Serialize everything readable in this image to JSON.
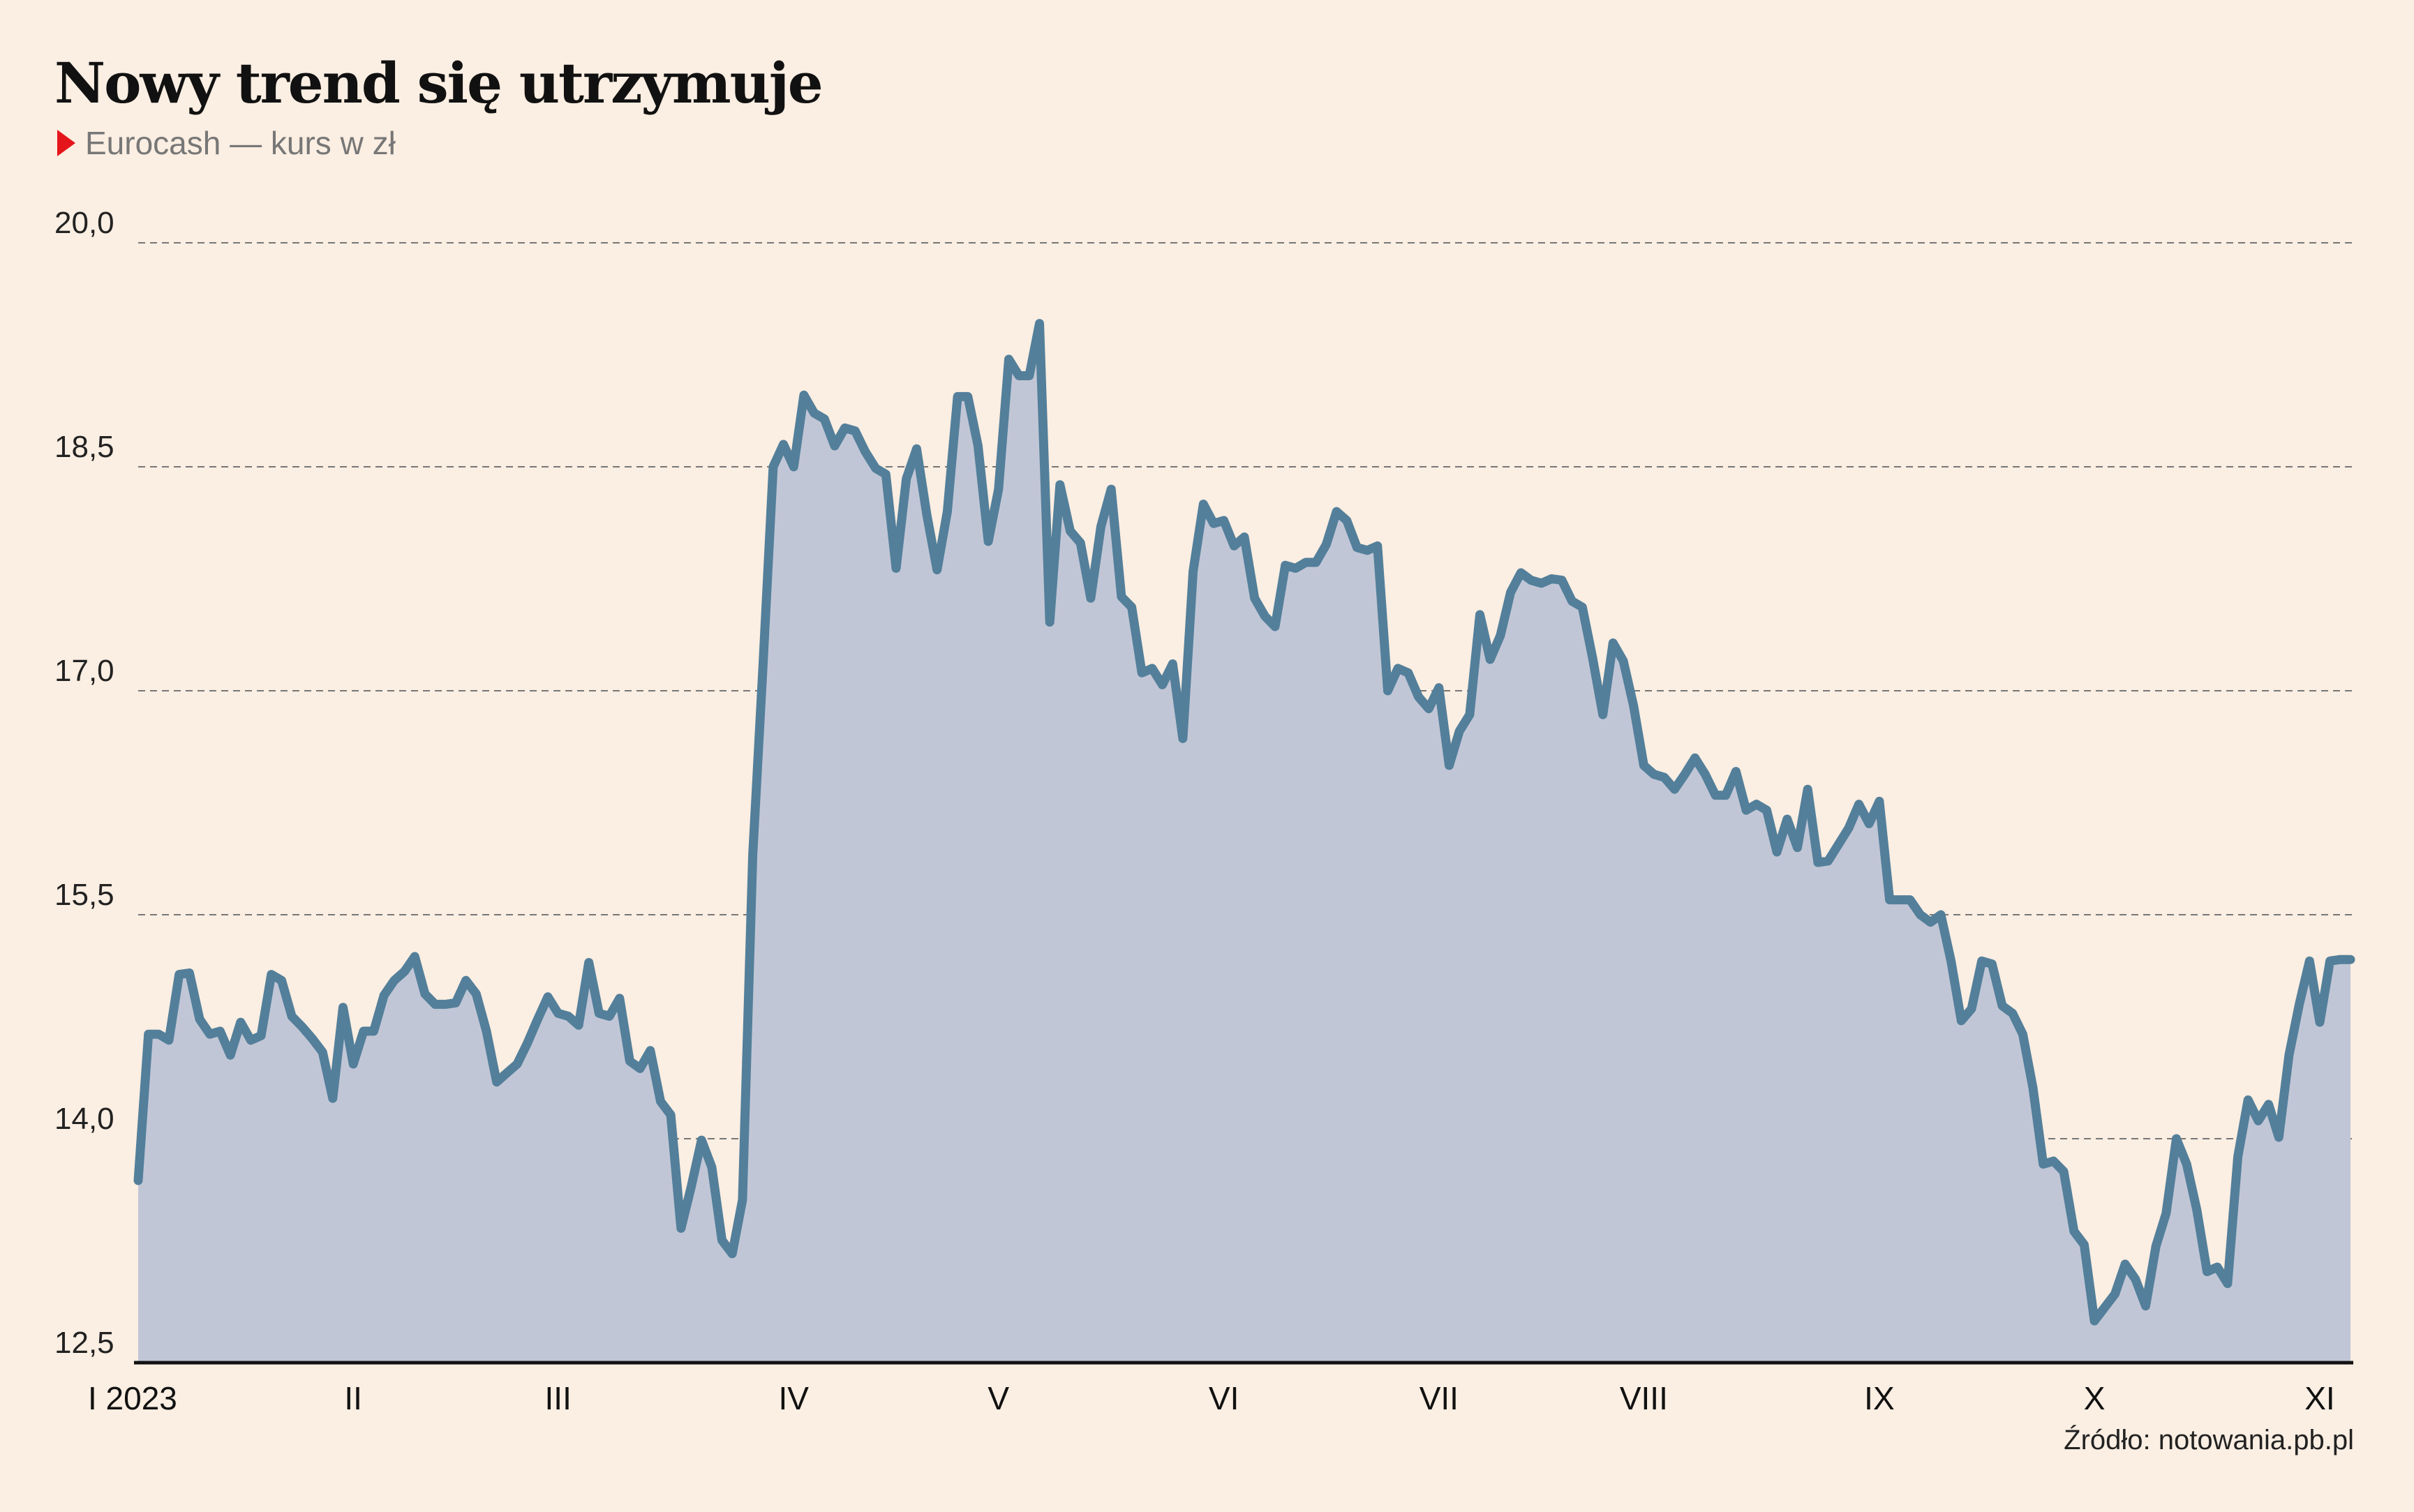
{
  "title": "Nowy trend się utrzymuje",
  "subtitle": "Eurocash — kurs w zł",
  "source": "Źródło: notowania.pb.pl",
  "colors": {
    "background": "#fbeee2",
    "line": "#537f9a",
    "area": "#c1c6d6",
    "marker": "#e5161b",
    "grid": "#777777",
    "axis": "#111111"
  },
  "chart_data": {
    "type": "area",
    "ylim": [
      12.5,
      20.0
    ],
    "yticks": [
      12.5,
      14.0,
      15.5,
      17.0,
      18.5,
      20.0
    ],
    "ytick_labels": [
      "12,5",
      "14,0",
      "15,5",
      "17,0",
      "18,5",
      "20,0"
    ],
    "grid": "horizontal-dashed",
    "x_tick_labels": [
      "I 2023",
      "II",
      "III",
      "IV",
      "V",
      "VI",
      "VII",
      "VIII",
      "IX",
      "X",
      "XI"
    ],
    "series": [
      {
        "name": "",
        "values": [
          13.72,
          14.7,
          14.7,
          14.66,
          15.1,
          15.11,
          14.8,
          14.7,
          14.72,
          14.56,
          14.78,
          14.66,
          14.69,
          15.1,
          15.06,
          14.82,
          14.75,
          14.67,
          14.58,
          14.27,
          14.88,
          14.5,
          14.72,
          14.72,
          14.96,
          15.06,
          15.12,
          15.22,
          14.97,
          14.9,
          14.9,
          14.91,
          15.06,
          14.97,
          14.72,
          14.38,
          14.44,
          14.5,
          14.64,
          14.8,
          14.95,
          14.84,
          14.82,
          14.76,
          15.18,
          14.84,
          14.82,
          14.94,
          14.52,
          14.47,
          14.59,
          14.25,
          14.16,
          13.4,
          13.68,
          13.99,
          13.81,
          13.32,
          13.23,
          13.59,
          15.9,
          17.16,
          18.5,
          18.65,
          18.5,
          18.98,
          18.86,
          18.82,
          18.64,
          18.76,
          18.74,
          18.6,
          18.49,
          18.45,
          17.82,
          18.42,
          18.62,
          18.18,
          17.81,
          18.2,
          18.97,
          18.97,
          18.64,
          18.0,
          18.35,
          19.22,
          19.11,
          19.11,
          19.46,
          17.46,
          18.38,
          18.07,
          17.99,
          17.62,
          18.1,
          18.35,
          17.63,
          17.56,
          17.12,
          17.15,
          17.04,
          17.18,
          16.68,
          17.8,
          18.25,
          18.12,
          18.14,
          17.97,
          18.03,
          17.62,
          17.5,
          17.43,
          17.84,
          17.82,
          17.86,
          17.86,
          17.98,
          18.2,
          18.14,
          17.96,
          17.94,
          17.97,
          17.0,
          17.15,
          17.12,
          16.96,
          16.88,
          17.02,
          16.5,
          16.73,
          16.84,
          17.51,
          17.21,
          17.37,
          17.66,
          17.79,
          17.74,
          17.72,
          17.75,
          17.74,
          17.6,
          17.56,
          17.22,
          16.84,
          17.32,
          17.2,
          16.9,
          16.5,
          16.44,
          16.42,
          16.34,
          16.44,
          16.55,
          16.44,
          16.3,
          16.3,
          16.46,
          16.2,
          16.24,
          16.2,
          15.92,
          16.14,
          15.95,
          16.34,
          15.85,
          15.86,
          15.97,
          16.08,
          16.24,
          16.11,
          16.26,
          15.6,
          15.6,
          15.6,
          15.5,
          15.45,
          15.5,
          15.19,
          14.79,
          14.87,
          15.19,
          15.17,
          14.89,
          14.84,
          14.7,
          14.34,
          13.83,
          13.85,
          13.78,
          13.38,
          13.29,
          12.78,
          12.87,
          12.96,
          13.16,
          13.06,
          12.88,
          13.28,
          13.5,
          14.0,
          13.83,
          13.52,
          13.11,
          13.14,
          13.03,
          13.88,
          14.26,
          14.12,
          14.23,
          14.01,
          14.56,
          14.9,
          15.19,
          14.78,
          15.19,
          15.2,
          15.2
        ]
      }
    ]
  }
}
